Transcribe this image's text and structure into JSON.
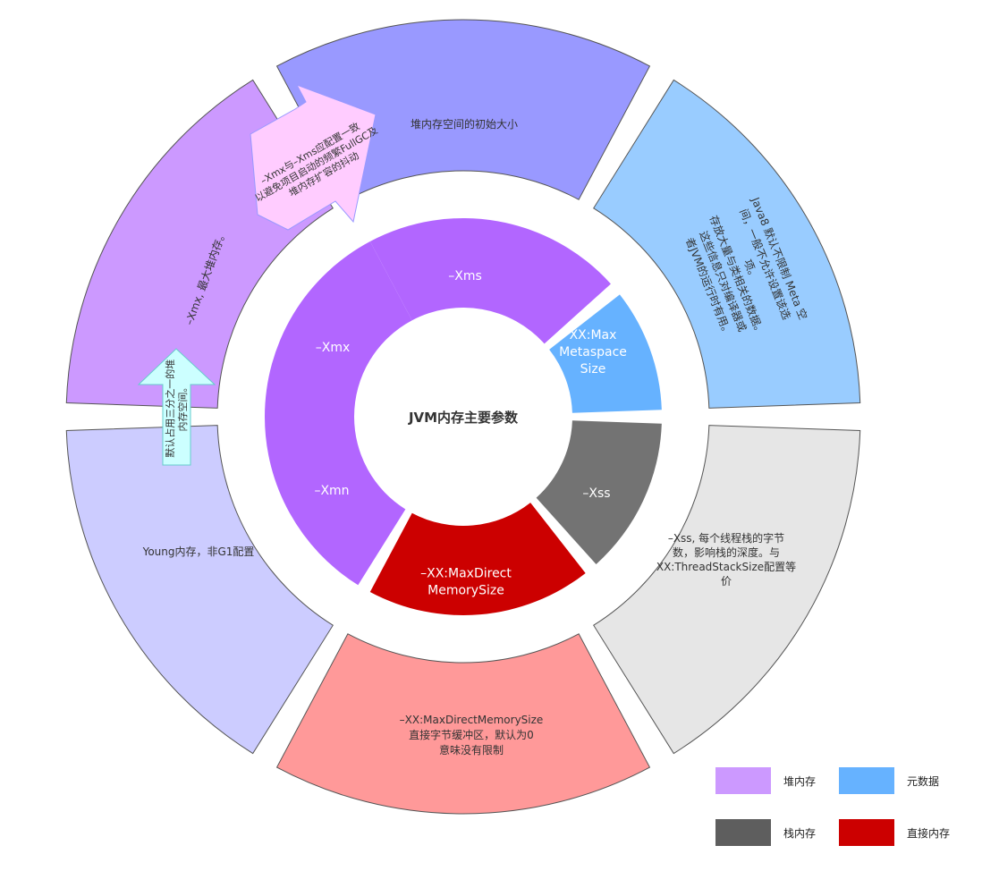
{
  "center": {
    "label": "JVM内存主要参数"
  },
  "inner_ring": [
    {
      "id": "xms",
      "label": "–Xms",
      "color": "#b266ff"
    },
    {
      "id": "metaspace",
      "label": "XX:Max Metaspace Size",
      "color": "#66b2ff"
    },
    {
      "id": "xss",
      "label": "–Xss",
      "color": "#737373"
    },
    {
      "id": "maxdirect",
      "label": "–XX:MaxDirect MemorySize",
      "color": "#cc0000"
    },
    {
      "id": "xmn",
      "label": "–Xmn",
      "color": "#b266ff"
    },
    {
      "id": "xmx",
      "label": "–Xmx",
      "color": "#b266ff"
    }
  ],
  "outer_ring": [
    {
      "id": "xms-desc",
      "text": "堆内存空间的初始大小",
      "color": "#9999ff"
    },
    {
      "id": "metaspace-desc",
      "text": "Java8 默认不限制 Meta 空间，一般不允许设置该选项。存放大量与类相关的数据。这些信息只对编译器或者JVM的运行时有用。",
      "color": "#99ccff"
    },
    {
      "id": "xss-desc",
      "text": "–Xss, 每个线程栈的字节数，影响栈的深度。与XX:ThreadStackSize配置等价",
      "color": "#e6e6e6"
    },
    {
      "id": "maxdirect-desc",
      "text": "–XX:MaxDirectMemorySize 直接字节缓冲区，默认为0意味没有限制",
      "color": "#ff9999"
    },
    {
      "id": "young-desc",
      "text": "Young内存，非G1配置",
      "color": "#ccccff"
    },
    {
      "id": "xmx-desc",
      "text": "–Xmx, 最大堆内存。",
      "color": "#cc99ff"
    }
  ],
  "notes": {
    "xmx_xms": "–Xmx与–Xms应配置一致 以避免项目启动的频繁FullGC及 堆内存扩容的抖动",
    "young_third": "默认占用三分之一的堆 内存空间。"
  },
  "legend": [
    {
      "label": "堆内存",
      "color": "#cc99ff"
    },
    {
      "label": "元数据",
      "color": "#66b2ff"
    },
    {
      "label": "栈内存",
      "color": "#5e5e5e"
    },
    {
      "label": "直接内存",
      "color": "#cc0000"
    }
  ]
}
